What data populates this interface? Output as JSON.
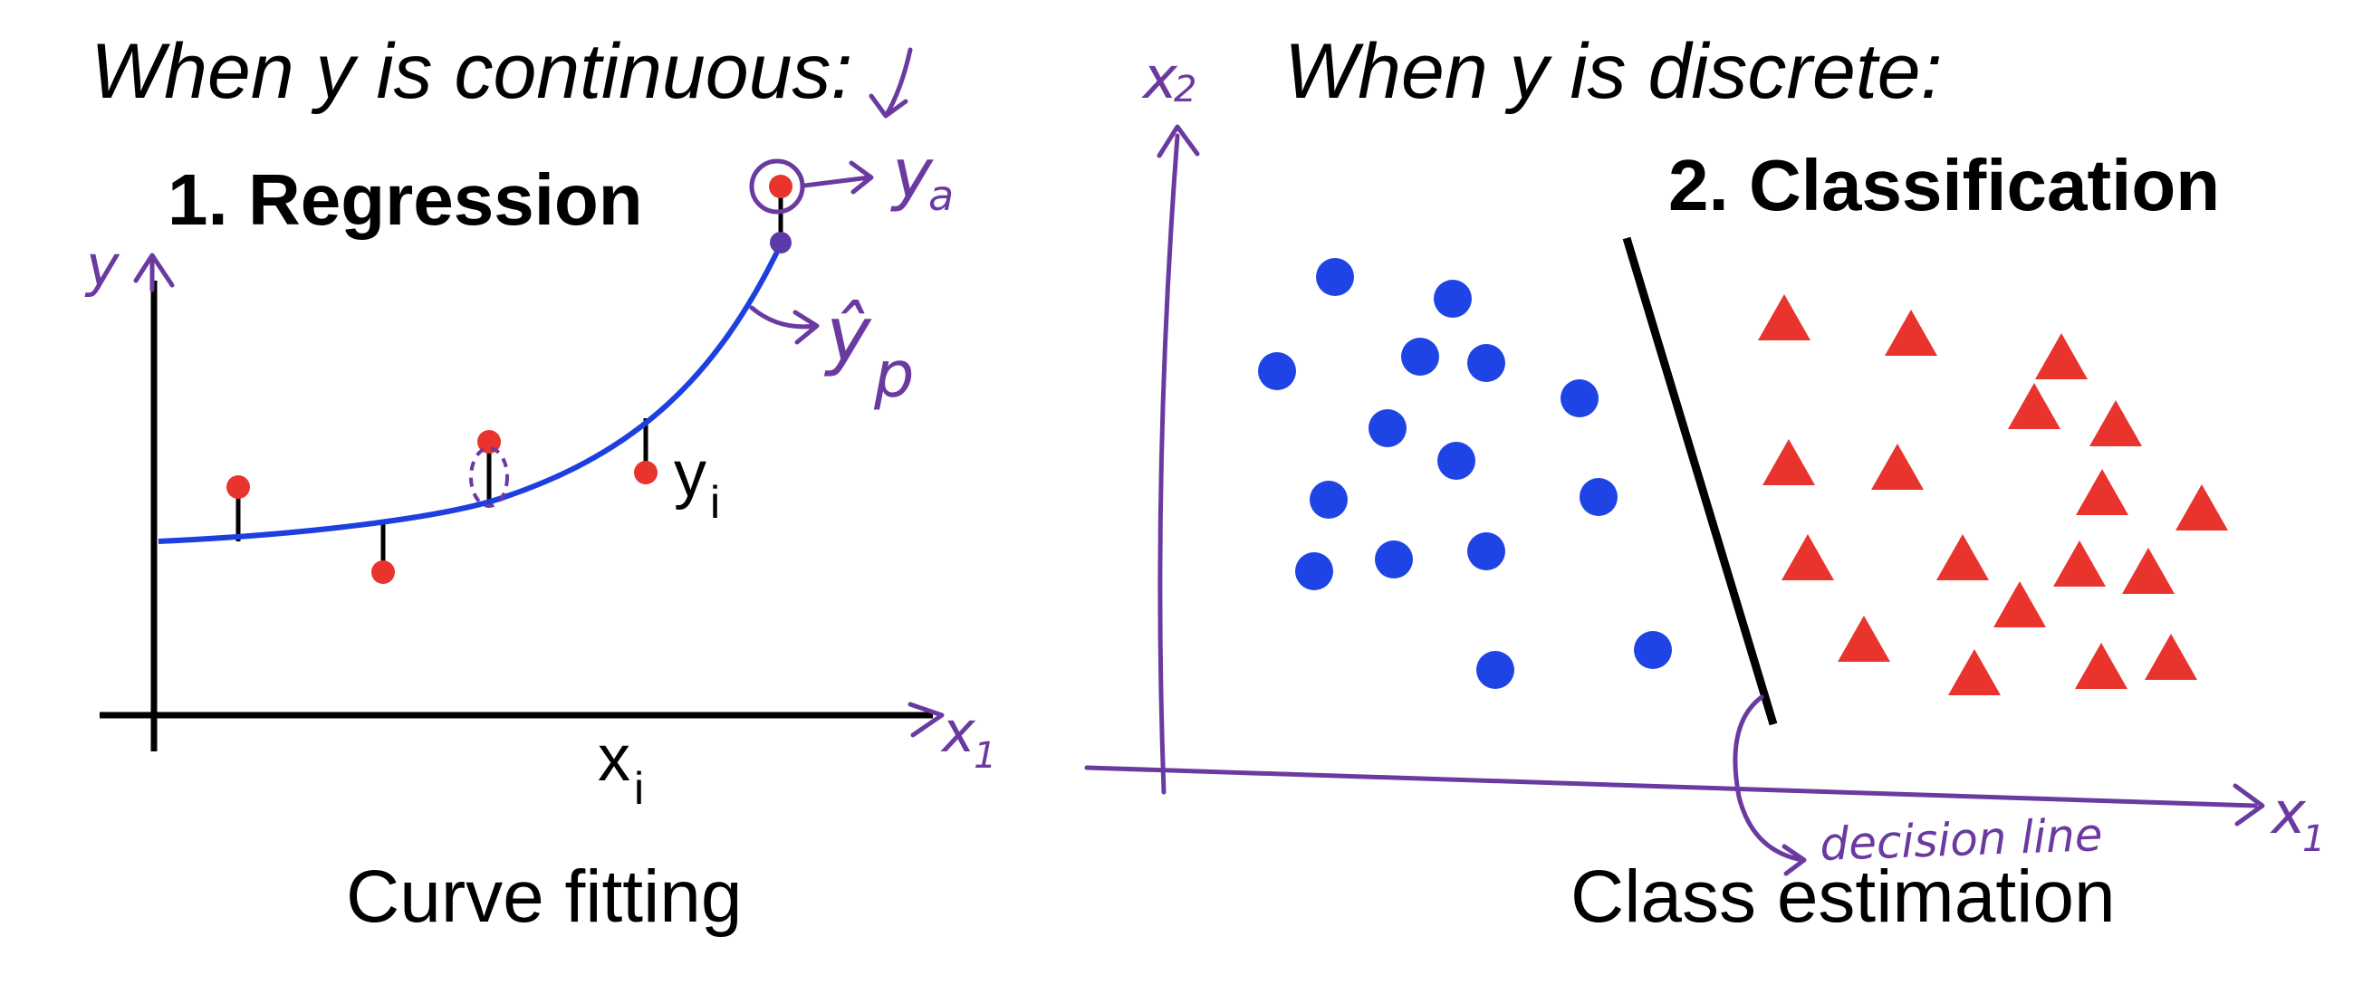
{
  "left": {
    "heading": "When y is continuous:",
    "title": "1. Regression",
    "caption": "Curve fitting",
    "axis_y": "y",
    "axis_x1": "x",
    "axis_x1_sub": "1",
    "point_label": "y",
    "point_label_sub": "i",
    "x_label": "x",
    "x_label_sub": "i",
    "ya": "y",
    "ya_sub": "a",
    "yhat": "ŷ",
    "yhat_sub": "p"
  },
  "right": {
    "heading": "When y is discrete:",
    "title": "2. Classification",
    "caption": "Class estimation",
    "axis_x2": "x",
    "axis_x2_sub": "2",
    "axis_x1": "x",
    "axis_x1_sub": "1",
    "decision_label": "decision line"
  },
  "colors": {
    "curve": "#1e3fe0",
    "points": "#e8342c",
    "blue_class": "#1e44e6",
    "red_class": "#e8342c",
    "annotation": "#6a3aa0"
  }
}
